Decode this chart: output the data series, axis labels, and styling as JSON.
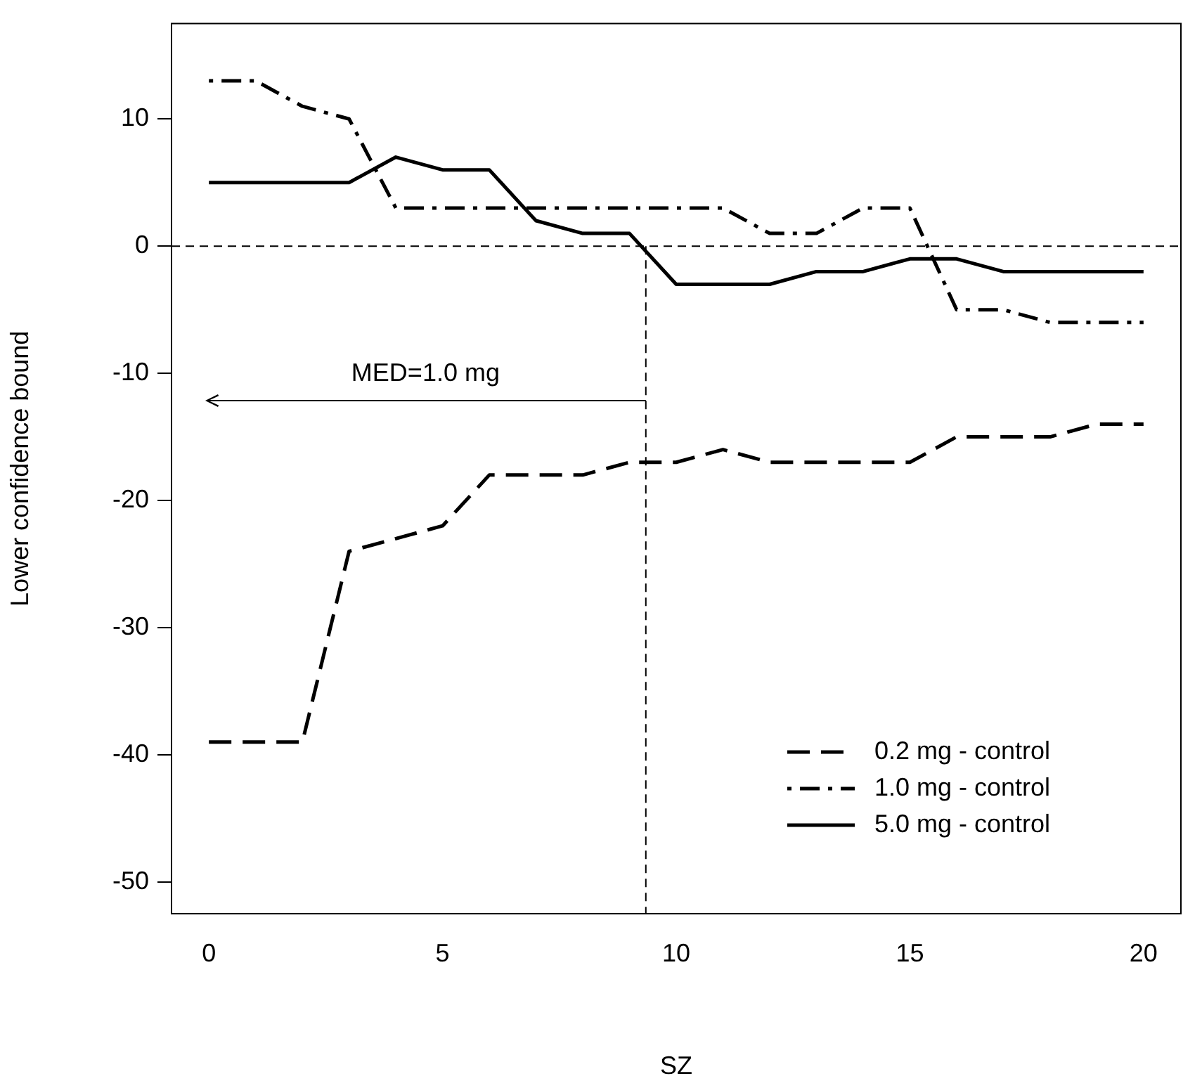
{
  "chart_data": {
    "type": "line",
    "xlabel": "SZ",
    "ylabel": "Lower confidence bound",
    "x": [
      0,
      1,
      2,
      3,
      4,
      5,
      6,
      7,
      8,
      9,
      10,
      11,
      12,
      13,
      14,
      15,
      16,
      17,
      18,
      19,
      20
    ],
    "xlim": [
      -0.8,
      20.8
    ],
    "xticks": [
      0,
      5,
      10,
      15,
      20
    ],
    "ylim": [
      -52.5,
      17.5
    ],
    "yticks": [
      -50,
      -40,
      -30,
      -20,
      -10,
      0,
      10
    ],
    "grid": false,
    "marker": "none",
    "legend": "bottom right",
    "series": [
      {
        "name": "0.2 mg - control",
        "color": "#000000",
        "line_style": "dashed",
        "values": [
          -39,
          -39,
          -39,
          -24,
          -23,
          -22,
          -18,
          -18,
          -18,
          -17,
          -17,
          -16,
          -17,
          -17,
          -17,
          -17,
          -15,
          -15,
          -15,
          -14,
          -14
        ]
      },
      {
        "name": "1.0 mg - control",
        "color": "#000000",
        "line_style": "dashdot",
        "values": [
          13,
          13,
          11,
          10,
          3,
          3,
          3,
          3,
          3,
          3,
          3,
          3,
          1,
          1,
          3,
          3,
          -5,
          -5,
          -6,
          -6,
          -6
        ]
      },
      {
        "name": "5.0 mg - control",
        "color": "#000000",
        "line_style": "solid",
        "values": [
          5,
          5,
          5,
          5,
          7,
          6,
          6,
          2,
          1,
          1,
          -3,
          -3,
          -3,
          -2,
          -2,
          -1,
          -1,
          -2,
          -2,
          -2,
          -2
        ]
      }
    ],
    "ref_lines": [
      {
        "axis": "y",
        "value": 0,
        "line_style": "dashed",
        "color": "#000000"
      },
      {
        "axis": "x",
        "value": 9.35,
        "line_style": "dashed",
        "color": "#000000"
      }
    ],
    "annotations": [
      "MED=1.0 mg"
    ]
  }
}
